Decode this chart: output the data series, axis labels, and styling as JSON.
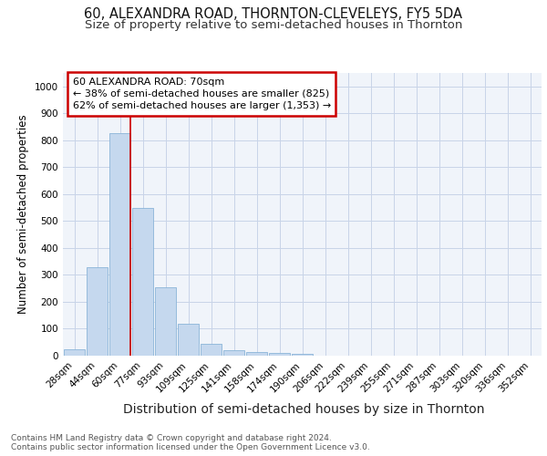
{
  "title": "60, ALEXANDRA ROAD, THORNTON-CLEVELEYS, FY5 5DA",
  "subtitle": "Size of property relative to semi-detached houses in Thornton",
  "xlabel": "Distribution of semi-detached houses by size in Thornton",
  "ylabel": "Number of semi-detached properties",
  "categories": [
    "28sqm",
    "44sqm",
    "60sqm",
    "77sqm",
    "93sqm",
    "109sqm",
    "125sqm",
    "141sqm",
    "158sqm",
    "174sqm",
    "190sqm",
    "206sqm",
    "222sqm",
    "239sqm",
    "255sqm",
    "271sqm",
    "287sqm",
    "303sqm",
    "320sqm",
    "336sqm",
    "352sqm"
  ],
  "values": [
    25,
    330,
    825,
    550,
    255,
    118,
    44,
    22,
    15,
    10,
    8,
    0,
    0,
    0,
    0,
    0,
    0,
    0,
    0,
    0,
    0
  ],
  "bar_color": "#c5d8ee",
  "bar_edge_color": "#8ab4d8",
  "highlight_index": 2,
  "highlight_color": "#cc0000",
  "annotation_text": "60 ALEXANDRA ROAD: 70sqm\n← 38% of semi-detached houses are smaller (825)\n62% of semi-detached houses are larger (1,353) →",
  "annotation_box_facecolor": "#ffffff",
  "annotation_box_edgecolor": "#cc0000",
  "ylim": [
    0,
    1050
  ],
  "yticks": [
    0,
    100,
    200,
    300,
    400,
    500,
    600,
    700,
    800,
    900,
    1000
  ],
  "footer_text": "Contains HM Land Registry data © Crown copyright and database right 2024.\nContains public sector information licensed under the Open Government Licence v3.0.",
  "bg_color": "#ffffff",
  "plot_bg_color": "#f0f4fa",
  "grid_color": "#c8d4e8",
  "title_fontsize": 10.5,
  "subtitle_fontsize": 9.5,
  "xlabel_fontsize": 10,
  "ylabel_fontsize": 8.5,
  "tick_fontsize": 7.5,
  "annotation_fontsize": 8,
  "footer_fontsize": 6.5
}
